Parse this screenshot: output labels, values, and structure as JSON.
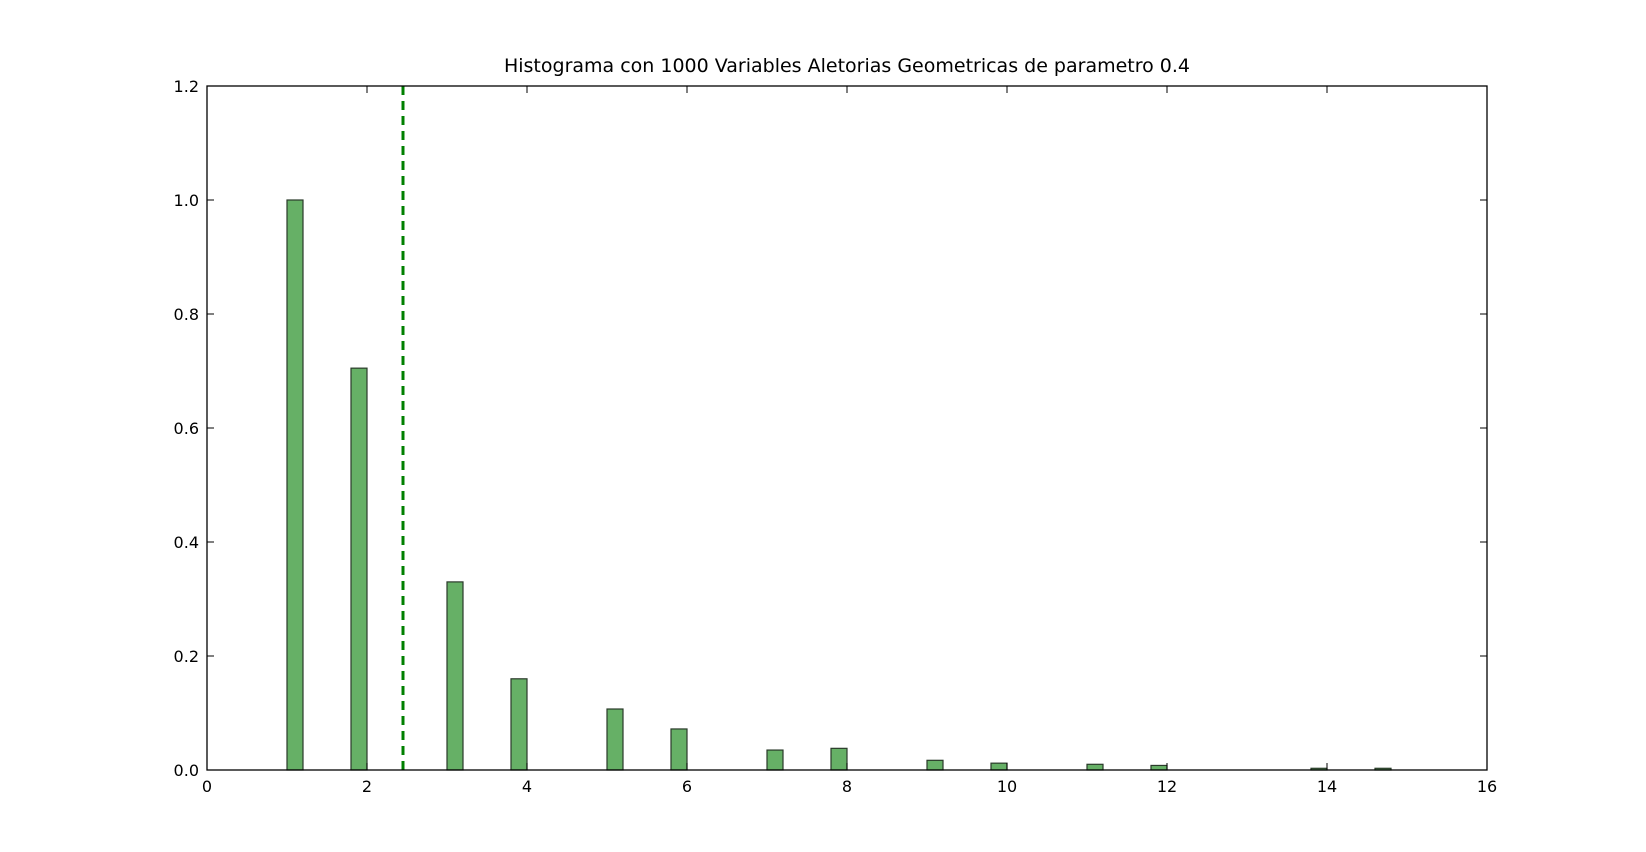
{
  "chart_data": {
    "type": "bar",
    "title": "Histograma con 1000 Variables Aletorias Geometricas de parametro 0.4",
    "xlabel": "",
    "ylabel": "",
    "xlim": [
      0,
      16
    ],
    "ylim": [
      0,
      1.2
    ],
    "xticks": [
      0,
      2,
      4,
      6,
      8,
      10,
      12,
      14,
      16
    ],
    "yticks": [
      0.0,
      0.2,
      0.4,
      0.6,
      0.8,
      1.0,
      1.2
    ],
    "ytick_labels": [
      "0.0",
      "0.2",
      "0.4",
      "0.6",
      "0.8",
      "1.0",
      "1.2"
    ],
    "bar_width": 0.2,
    "bars": [
      {
        "x_start": 1.0,
        "value": 1.0
      },
      {
        "x_start": 1.8,
        "value": 0.705
      },
      {
        "x_start": 3.0,
        "value": 0.33
      },
      {
        "x_start": 3.8,
        "value": 0.16
      },
      {
        "x_start": 5.0,
        "value": 0.107
      },
      {
        "x_start": 5.8,
        "value": 0.072
      },
      {
        "x_start": 7.0,
        "value": 0.035
      },
      {
        "x_start": 7.8,
        "value": 0.038
      },
      {
        "x_start": 9.0,
        "value": 0.017
      },
      {
        "x_start": 9.8,
        "value": 0.012
      },
      {
        "x_start": 11.0,
        "value": 0.01
      },
      {
        "x_start": 11.8,
        "value": 0.008
      },
      {
        "x_start": 13.8,
        "value": 0.003
      },
      {
        "x_start": 14.6,
        "value": 0.003
      }
    ],
    "reference_line": {
      "x": 2.45,
      "style": "dashed"
    },
    "grid": false,
    "colors": {
      "bar_fill": "#66b066",
      "bar_edge": "#2a3a2a",
      "reference_line": "#008000",
      "axes": "#000000"
    }
  }
}
